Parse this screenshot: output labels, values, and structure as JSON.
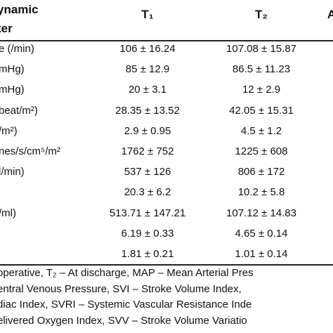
{
  "header": {
    "parameter": [
      "ynamic",
      "ter"
    ],
    "columns": [
      "T₁",
      "T₂",
      "A"
    ]
  },
  "table": {
    "rows": [
      {
        "label": "e (/min)",
        "t1": "106 ± 16.24",
        "t2": "107.08 ± 15.87"
      },
      {
        "label": "mHg)",
        "t1": "85 ± 12.9",
        "t2": "86.5 ± 11.23"
      },
      {
        "label": "mHg)",
        "t1": "20 ± 3.1",
        "t2": "12 ± 2.9"
      },
      {
        "label": "beat/m²)",
        "t1": "28.35 ± 13.52",
        "t2": "42.05 ± 15.31"
      },
      {
        "label": "/m²)",
        "t1": "2.9 ± 0.95",
        "t2": "4.5 ± 1.2"
      },
      {
        "label": "nes/s/cm⁵/m²",
        "t1": "1762 ± 752",
        "t2": "1225 ± 608"
      },
      {
        "label": "l/min)",
        "t1": "537 ± 126",
        "t2": "806 ± 172"
      },
      {
        "t1": "20.3 ± 6.2",
        "t2": "10.2 ± 5.8"
      },
      {
        "label": "/ml)",
        "t1": "513.71 ± 147.21",
        "t2": "107.12 ± 14.83"
      },
      {
        "t1": "6.19 ± 0.33",
        "t2": "4.65 ± 0.14"
      },
      {
        "t1": "1.81 ± 0.21",
        "t2": "1.01 ± 0.14"
      }
    ]
  },
  "footnote": [
    "operative, T₂ – At discharge, MAP – Mean Arterial Pres",
    "entral Venous Pressure, SVI – Stroke Volume Index,",
    "diac Index, SVRI – Systemic Vascular Resistance Inde",
    "elivered Oxygen Index, SVV – Stroke Volume Variatio"
  ]
}
